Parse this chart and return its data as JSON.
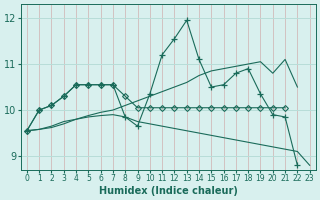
{
  "xlabel": "Humidex (Indice chaleur)",
  "xlim": [
    -0.5,
    23.5
  ],
  "ylim": [
    8.7,
    12.3
  ],
  "yticks": [
    9,
    10,
    11,
    12
  ],
  "xticks": [
    0,
    1,
    2,
    3,
    4,
    5,
    6,
    7,
    8,
    9,
    10,
    11,
    12,
    13,
    14,
    15,
    16,
    17,
    18,
    19,
    20,
    21,
    22,
    23
  ],
  "bg_color": "#d8f0ee",
  "grid_color": "#b8ddd8",
  "line_color": "#1a6b5a",
  "lines": [
    {
      "x": [
        0,
        1,
        2,
        3,
        4,
        5,
        6,
        7,
        8,
        9,
        10,
        11,
        12,
        13,
        14,
        15,
        16,
        17,
        18,
        19,
        20,
        21,
        22,
        23
      ],
      "y": [
        9.55,
        9.58,
        9.62,
        9.7,
        9.8,
        9.88,
        9.95,
        10.0,
        10.1,
        10.2,
        10.3,
        10.4,
        10.5,
        10.6,
        10.75,
        10.85,
        10.9,
        10.95,
        11.0,
        11.05,
        10.8,
        11.1,
        10.5,
        null
      ],
      "marker": null,
      "has_markers": false
    },
    {
      "x": [
        0,
        1,
        2,
        3,
        4,
        5,
        6,
        7,
        8,
        9,
        10,
        11,
        12,
        13,
        14,
        15,
        16,
        17,
        18,
        19,
        20,
        21
      ],
      "y": [
        9.55,
        10.0,
        10.1,
        10.3,
        10.55,
        10.55,
        10.55,
        10.55,
        10.3,
        10.05,
        10.05,
        10.05,
        10.05,
        10.05,
        10.05,
        10.05,
        10.05,
        10.05,
        10.05,
        10.05,
        10.05,
        10.05
      ],
      "marker": "D",
      "has_markers": true
    },
    {
      "x": [
        0,
        1,
        2,
        3,
        4,
        5,
        6,
        7,
        8,
        9,
        10,
        11,
        12,
        13,
        14,
        15,
        16,
        17,
        18,
        19,
        20,
        21,
        22
      ],
      "y": [
        9.55,
        10.0,
        10.1,
        10.3,
        10.55,
        10.55,
        10.55,
        10.55,
        9.85,
        9.65,
        10.35,
        11.2,
        11.55,
        11.95,
        11.1,
        10.5,
        10.55,
        10.8,
        10.9,
        10.35,
        9.9,
        9.85,
        8.8
      ],
      "marker": "+",
      "has_markers": true
    },
    {
      "x": [
        0,
        1,
        2,
        3,
        4,
        5,
        6,
        7,
        8,
        9,
        10,
        11,
        12,
        13,
        14,
        15,
        16,
        17,
        18,
        19,
        20,
        21,
        22,
        23
      ],
      "y": [
        9.55,
        9.58,
        9.65,
        9.75,
        9.8,
        9.85,
        9.88,
        9.9,
        9.85,
        9.75,
        9.7,
        9.65,
        9.6,
        9.55,
        9.5,
        9.45,
        9.4,
        9.35,
        9.3,
        9.25,
        9.2,
        9.15,
        9.1,
        8.8
      ],
      "marker": null,
      "has_markers": false
    }
  ]
}
